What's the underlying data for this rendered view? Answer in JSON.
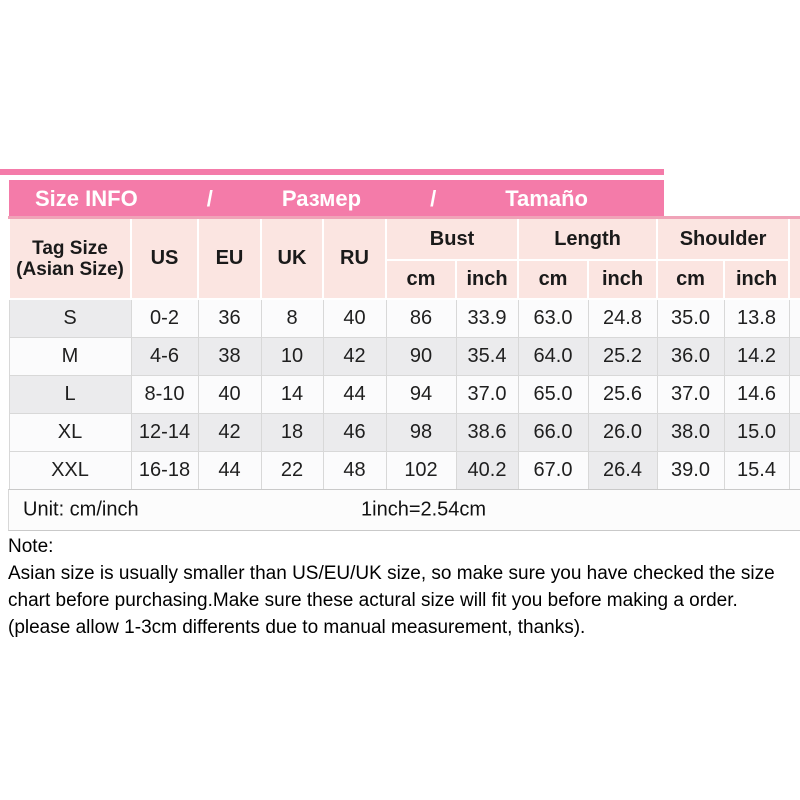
{
  "colors": {
    "header_pink": "#F47BA9",
    "light_pink": "#FBE5E1",
    "pink_border": "#F0A3B8",
    "shade_gray": "#EBEBED",
    "cell_white": "#FBFBFC",
    "grid_line": "#D8D8D8"
  },
  "title_bar": {
    "segments": [
      "Size INFO",
      "/",
      "Размер",
      "/",
      "Tamaño"
    ]
  },
  "table": {
    "header": {
      "tag_line1": "Tag Size",
      "tag_line2": "(Asian Size)",
      "regions": [
        "US",
        "EU",
        "UK",
        "RU"
      ],
      "measures": [
        "Bust",
        "Length",
        "Shoulder"
      ],
      "sub_labels": [
        "cm",
        "inch",
        "cm",
        "inch",
        "cm",
        "inch"
      ]
    },
    "rows": [
      {
        "size": "S",
        "us": "0-2",
        "eu": "36",
        "uk": "8",
        "ru": "40",
        "bust_cm": "86",
        "bust_inch": "33.9",
        "length_cm": "63.0",
        "length_inch": "24.8",
        "shoulder_cm": "35.0",
        "shoulder_inch": "13.8",
        "shade": "A"
      },
      {
        "size": "M",
        "us": "4-6",
        "eu": "38",
        "uk": "10",
        "ru": "42",
        "bust_cm": "90",
        "bust_inch": "35.4",
        "length_cm": "64.0",
        "length_inch": "25.2",
        "shoulder_cm": "36.0",
        "shoulder_inch": "14.2",
        "shade": "B"
      },
      {
        "size": "L",
        "us": "8-10",
        "eu": "40",
        "uk": "14",
        "ru": "44",
        "bust_cm": "94",
        "bust_inch": "37.0",
        "length_cm": "65.0",
        "length_inch": "25.6",
        "shoulder_cm": "37.0",
        "shoulder_inch": "14.6",
        "shade": "A"
      },
      {
        "size": "XL",
        "us": "12-14",
        "eu": "42",
        "uk": "18",
        "ru": "46",
        "bust_cm": "98",
        "bust_inch": "38.6",
        "length_cm": "66.0",
        "length_inch": "26.0",
        "shoulder_cm": "38.0",
        "shoulder_inch": "15.0",
        "shade": "B"
      },
      {
        "size": "XXL",
        "us": "16-18",
        "eu": "44",
        "uk": "22",
        "ru": "48",
        "bust_cm": "102",
        "bust_inch": "40.2",
        "length_cm": "67.0",
        "length_inch": "26.4",
        "shoulder_cm": "39.0",
        "shoulder_inch": "15.4",
        "shade": "C"
      }
    ]
  },
  "unit_row": {
    "left": "Unit: cm/inch",
    "right": "1inch=2.54cm"
  },
  "note": {
    "label": "Note:",
    "text": "Asian size is usually smaller than US/EU/UK size, so make sure you have checked the size chart before purchasing.Make sure these actural size will fit you before making a order.(please allow 1-3cm differents due to manual measurement, thanks)."
  },
  "chart_data": {
    "type": "table",
    "title": "Size INFO / Размер / Tamaño",
    "columns": [
      "Tag Size (Asian Size)",
      "US",
      "EU",
      "UK",
      "RU",
      "Bust cm",
      "Bust inch",
      "Length cm",
      "Length inch",
      "Shoulder cm",
      "Shoulder inch"
    ],
    "rows": [
      [
        "S",
        "0-2",
        36,
        8,
        40,
        86,
        33.9,
        63.0,
        24.8,
        35.0,
        13.8
      ],
      [
        "M",
        "4-6",
        38,
        10,
        42,
        90,
        35.4,
        64.0,
        25.2,
        36.0,
        14.2
      ],
      [
        "L",
        "8-10",
        40,
        14,
        44,
        94,
        37.0,
        65.0,
        25.6,
        37.0,
        14.6
      ],
      [
        "XL",
        "12-14",
        42,
        18,
        46,
        98,
        38.6,
        66.0,
        26.0,
        38.0,
        15.0
      ],
      [
        "XXL",
        "16-18",
        44,
        22,
        48,
        102,
        40.2,
        67.0,
        26.4,
        39.0,
        15.4
      ]
    ],
    "notes": [
      "Unit: cm/inch",
      "1inch=2.54cm"
    ]
  }
}
